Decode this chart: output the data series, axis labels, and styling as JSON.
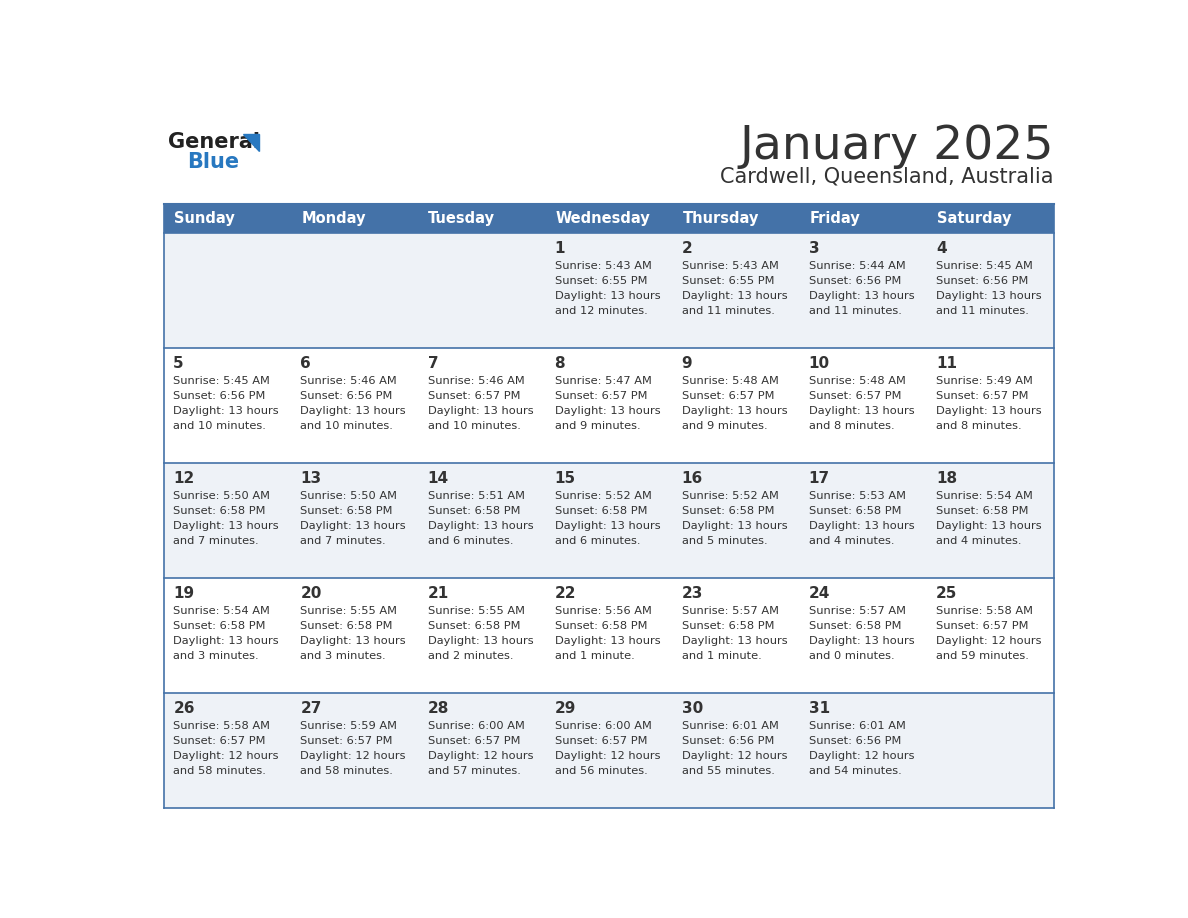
{
  "title": "January 2025",
  "subtitle": "Cardwell, Queensland, Australia",
  "header_bg": "#4472a8",
  "header_text_color": "#ffffff",
  "cell_bg_odd": "#eef2f7",
  "cell_bg_even": "#ffffff",
  "row_line_color": "#4472a8",
  "text_color": "#333333",
  "days_of_week": [
    "Sunday",
    "Monday",
    "Tuesday",
    "Wednesday",
    "Thursday",
    "Friday",
    "Saturday"
  ],
  "weeks": [
    [
      {
        "day": "",
        "sunrise": "",
        "sunset": "",
        "daylight": ""
      },
      {
        "day": "",
        "sunrise": "",
        "sunset": "",
        "daylight": ""
      },
      {
        "day": "",
        "sunrise": "",
        "sunset": "",
        "daylight": ""
      },
      {
        "day": "1",
        "sunrise": "5:43 AM",
        "sunset": "6:55 PM",
        "daylight": "13 hours and 12 minutes."
      },
      {
        "day": "2",
        "sunrise": "5:43 AM",
        "sunset": "6:55 PM",
        "daylight": "13 hours and 11 minutes."
      },
      {
        "day": "3",
        "sunrise": "5:44 AM",
        "sunset": "6:56 PM",
        "daylight": "13 hours and 11 minutes."
      },
      {
        "day": "4",
        "sunrise": "5:45 AM",
        "sunset": "6:56 PM",
        "daylight": "13 hours and 11 minutes."
      }
    ],
    [
      {
        "day": "5",
        "sunrise": "5:45 AM",
        "sunset": "6:56 PM",
        "daylight": "13 hours and 10 minutes."
      },
      {
        "day": "6",
        "sunrise": "5:46 AM",
        "sunset": "6:56 PM",
        "daylight": "13 hours and 10 minutes."
      },
      {
        "day": "7",
        "sunrise": "5:46 AM",
        "sunset": "6:57 PM",
        "daylight": "13 hours and 10 minutes."
      },
      {
        "day": "8",
        "sunrise": "5:47 AM",
        "sunset": "6:57 PM",
        "daylight": "13 hours and 9 minutes."
      },
      {
        "day": "9",
        "sunrise": "5:48 AM",
        "sunset": "6:57 PM",
        "daylight": "13 hours and 9 minutes."
      },
      {
        "day": "10",
        "sunrise": "5:48 AM",
        "sunset": "6:57 PM",
        "daylight": "13 hours and 8 minutes."
      },
      {
        "day": "11",
        "sunrise": "5:49 AM",
        "sunset": "6:57 PM",
        "daylight": "13 hours and 8 minutes."
      }
    ],
    [
      {
        "day": "12",
        "sunrise": "5:50 AM",
        "sunset": "6:58 PM",
        "daylight": "13 hours and 7 minutes."
      },
      {
        "day": "13",
        "sunrise": "5:50 AM",
        "sunset": "6:58 PM",
        "daylight": "13 hours and 7 minutes."
      },
      {
        "day": "14",
        "sunrise": "5:51 AM",
        "sunset": "6:58 PM",
        "daylight": "13 hours and 6 minutes."
      },
      {
        "day": "15",
        "sunrise": "5:52 AM",
        "sunset": "6:58 PM",
        "daylight": "13 hours and 6 minutes."
      },
      {
        "day": "16",
        "sunrise": "5:52 AM",
        "sunset": "6:58 PM",
        "daylight": "13 hours and 5 minutes."
      },
      {
        "day": "17",
        "sunrise": "5:53 AM",
        "sunset": "6:58 PM",
        "daylight": "13 hours and 4 minutes."
      },
      {
        "day": "18",
        "sunrise": "5:54 AM",
        "sunset": "6:58 PM",
        "daylight": "13 hours and 4 minutes."
      }
    ],
    [
      {
        "day": "19",
        "sunrise": "5:54 AM",
        "sunset": "6:58 PM",
        "daylight": "13 hours and 3 minutes."
      },
      {
        "day": "20",
        "sunrise": "5:55 AM",
        "sunset": "6:58 PM",
        "daylight": "13 hours and 3 minutes."
      },
      {
        "day": "21",
        "sunrise": "5:55 AM",
        "sunset": "6:58 PM",
        "daylight": "13 hours and 2 minutes."
      },
      {
        "day": "22",
        "sunrise": "5:56 AM",
        "sunset": "6:58 PM",
        "daylight": "13 hours and 1 minute."
      },
      {
        "day": "23",
        "sunrise": "5:57 AM",
        "sunset": "6:58 PM",
        "daylight": "13 hours and 1 minute."
      },
      {
        "day": "24",
        "sunrise": "5:57 AM",
        "sunset": "6:58 PM",
        "daylight": "13 hours and 0 minutes."
      },
      {
        "day": "25",
        "sunrise": "5:58 AM",
        "sunset": "6:57 PM",
        "daylight": "12 hours and 59 minutes."
      }
    ],
    [
      {
        "day": "26",
        "sunrise": "5:58 AM",
        "sunset": "6:57 PM",
        "daylight": "12 hours and 58 minutes."
      },
      {
        "day": "27",
        "sunrise": "5:59 AM",
        "sunset": "6:57 PM",
        "daylight": "12 hours and 58 minutes."
      },
      {
        "day": "28",
        "sunrise": "6:00 AM",
        "sunset": "6:57 PM",
        "daylight": "12 hours and 57 minutes."
      },
      {
        "day": "29",
        "sunrise": "6:00 AM",
        "sunset": "6:57 PM",
        "daylight": "12 hours and 56 minutes."
      },
      {
        "day": "30",
        "sunrise": "6:01 AM",
        "sunset": "6:56 PM",
        "daylight": "12 hours and 55 minutes."
      },
      {
        "day": "31",
        "sunrise": "6:01 AM",
        "sunset": "6:56 PM",
        "daylight": "12 hours and 54 minutes."
      },
      {
        "day": "",
        "sunrise": "",
        "sunset": "",
        "daylight": ""
      }
    ]
  ],
  "logo_color1": "#222222",
  "logo_color2": "#2878c0",
  "logo_triangle_color": "#2878c0"
}
